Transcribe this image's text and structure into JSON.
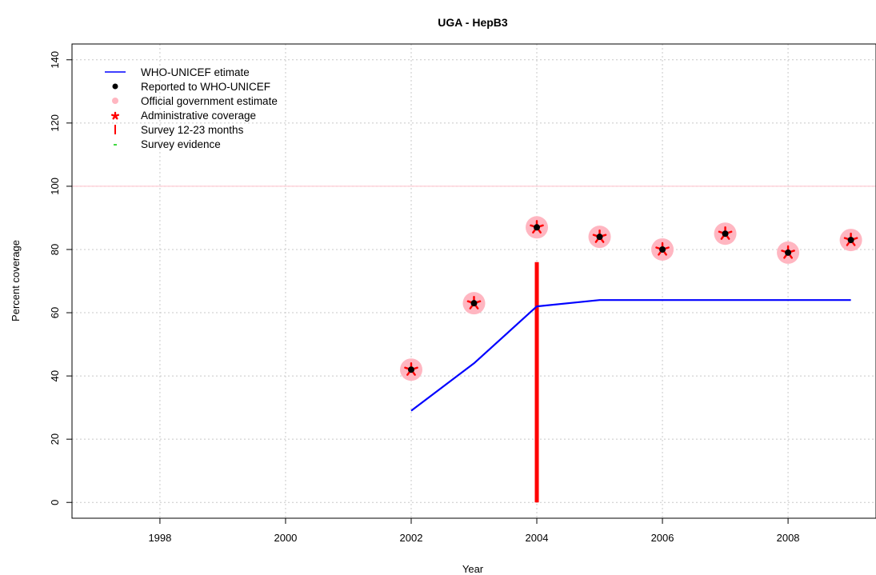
{
  "chart_data": {
    "type": "line",
    "title": "UGA  -  HepB3",
    "xlabel": "Year",
    "ylabel": "Percent coverage",
    "xlim": [
      1996.6,
      2009.4
    ],
    "ylim": [
      -5,
      145
    ],
    "x_ticks": [
      1998,
      2000,
      2002,
      2004,
      2006,
      2008
    ],
    "y_ticks": [
      0,
      20,
      40,
      60,
      80,
      100,
      120,
      140
    ],
    "grid": true,
    "reference_line": 100,
    "legend_position": "top-left",
    "series": [
      {
        "name": "WHO-UNICEF etimate",
        "kind": "line",
        "color": "#0000ff",
        "x": [
          2002,
          2003,
          2004,
          2005,
          2006,
          2007,
          2008,
          2009
        ],
        "y": [
          29,
          44,
          62,
          64,
          64,
          64,
          64,
          64
        ]
      },
      {
        "name": "Reported to WHO-UNICEF",
        "kind": "point",
        "color": "#000000",
        "x": [
          2002,
          2003,
          2004,
          2005,
          2006,
          2007,
          2008,
          2009
        ],
        "y": [
          42,
          63,
          87,
          84,
          80,
          85,
          79,
          83
        ]
      },
      {
        "name": "Official government estimate",
        "kind": "point",
        "color": "#ffb6c1",
        "x": [
          2002,
          2003,
          2004,
          2005,
          2006,
          2007,
          2008,
          2009
        ],
        "y": [
          42,
          63,
          87,
          84,
          80,
          85,
          79,
          83
        ]
      },
      {
        "name": "Administrative coverage",
        "kind": "point",
        "color": "#ff0000",
        "x": [
          2002,
          2003,
          2004,
          2005,
          2006,
          2007,
          2008,
          2009
        ],
        "y": [
          42,
          63,
          87,
          84,
          80,
          85,
          79,
          83
        ]
      },
      {
        "name": "Survey 12-23 months",
        "kind": "bar",
        "color": "#ff0000",
        "x": [
          2004
        ],
        "y": [
          76
        ]
      },
      {
        "name": "Survey evidence",
        "kind": "point",
        "color": "#00cc00",
        "x": [],
        "y": []
      }
    ]
  }
}
